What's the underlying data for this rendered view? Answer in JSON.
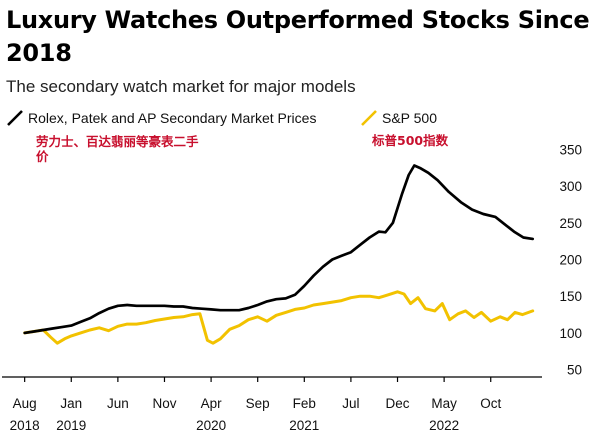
{
  "header": {
    "title": "Luxury Watches Outperformed Stocks Since 2018",
    "subtitle": "The secondary watch market for major models"
  },
  "chart_data": {
    "type": "line",
    "title": "Luxury Watches Outperformed Stocks Since 2018",
    "subtitle": "The secondary watch market for major models",
    "x_ticks": [
      {
        "month": "Aug",
        "year": "2018",
        "t": 0
      },
      {
        "month": "Jan",
        "year": "2019",
        "t": 5
      },
      {
        "month": "Jun",
        "year": "",
        "t": 10
      },
      {
        "month": "Nov",
        "year": "",
        "t": 15
      },
      {
        "month": "Apr",
        "year": "2020",
        "t": 20
      },
      {
        "month": "Sep",
        "year": "",
        "t": 25
      },
      {
        "month": "Feb",
        "year": "2021",
        "t": 30
      },
      {
        "month": "Jul",
        "year": "",
        "t": 35
      },
      {
        "month": "Dec",
        "year": "",
        "t": 40
      },
      {
        "month": "May",
        "year": "2022",
        "t": 45
      },
      {
        "month": "Oct",
        "year": "",
        "t": 50
      }
    ],
    "y_ticks": [
      50,
      100,
      150,
      200,
      250,
      300,
      350
    ],
    "ylim": [
      40,
      360
    ],
    "xlim": [
      -0.5,
      55.5
    ],
    "grid": false,
    "legend_position": "top-left",
    "colors": {
      "watch": "#000000",
      "sp500": "#f2c200"
    },
    "series": [
      {
        "name": "Rolex, Patek and AP Secondary Market Prices",
        "note_cn": "劳力士、百达翡丽等豪表二手价",
        "points": [
          [
            0,
            100
          ],
          [
            1,
            102
          ],
          [
            2,
            104
          ],
          [
            3,
            106
          ],
          [
            4,
            108
          ],
          [
            5,
            110
          ],
          [
            6,
            115
          ],
          [
            7,
            120
          ],
          [
            8,
            127
          ],
          [
            9,
            133
          ],
          [
            10,
            137
          ],
          [
            11,
            138
          ],
          [
            12,
            137
          ],
          [
            13,
            137
          ],
          [
            14,
            137
          ],
          [
            15,
            137
          ],
          [
            16,
            136
          ],
          [
            17,
            136
          ],
          [
            18,
            134
          ],
          [
            19,
            133
          ],
          [
            20,
            132
          ],
          [
            21,
            131
          ],
          [
            22,
            131
          ],
          [
            23,
            131
          ],
          [
            24,
            134
          ],
          [
            25,
            138
          ],
          [
            26,
            143
          ],
          [
            27,
            146
          ],
          [
            28,
            147
          ],
          [
            29,
            152
          ],
          [
            30,
            164
          ],
          [
            31,
            178
          ],
          [
            32,
            190
          ],
          [
            33,
            200
          ],
          [
            34,
            205
          ],
          [
            35,
            210
          ],
          [
            36,
            220
          ],
          [
            37,
            230
          ],
          [
            38,
            238
          ],
          [
            38.7,
            237
          ],
          [
            39.5,
            250
          ],
          [
            40.5,
            290
          ],
          [
            41.2,
            315
          ],
          [
            41.8,
            328
          ],
          [
            42.5,
            324
          ],
          [
            43.3,
            318
          ],
          [
            44.3,
            308
          ],
          [
            45.5,
            292
          ],
          [
            46.8,
            278
          ],
          [
            48,
            268
          ],
          [
            49.2,
            262
          ],
          [
            50.5,
            258
          ],
          [
            51.5,
            248
          ],
          [
            52.5,
            238
          ],
          [
            53.5,
            230
          ],
          [
            54.5,
            228
          ]
        ]
      },
      {
        "name": "S&P 500",
        "note_cn": "标普500指数",
        "points": [
          [
            0,
            100
          ],
          [
            1,
            102
          ],
          [
            2,
            104
          ],
          [
            2.8,
            94
          ],
          [
            3.5,
            86
          ],
          [
            4.3,
            92
          ],
          [
            5,
            96
          ],
          [
            6,
            100
          ],
          [
            7,
            104
          ],
          [
            8,
            107
          ],
          [
            9,
            103
          ],
          [
            10,
            109
          ],
          [
            11,
            112
          ],
          [
            12,
            112
          ],
          [
            13,
            114
          ],
          [
            14,
            117
          ],
          [
            15,
            119
          ],
          [
            16,
            121
          ],
          [
            17,
            122
          ],
          [
            18,
            125
          ],
          [
            18.8,
            126
          ],
          [
            19.6,
            90
          ],
          [
            20.2,
            86
          ],
          [
            21,
            92
          ],
          [
            22,
            105
          ],
          [
            23,
            110
          ],
          [
            24,
            118
          ],
          [
            25,
            122
          ],
          [
            26,
            116
          ],
          [
            27,
            124
          ],
          [
            28,
            128
          ],
          [
            29,
            132
          ],
          [
            30,
            134
          ],
          [
            31,
            138
          ],
          [
            32,
            140
          ],
          [
            33,
            142
          ],
          [
            34,
            144
          ],
          [
            35,
            148
          ],
          [
            36,
            150
          ],
          [
            37,
            150
          ],
          [
            38,
            148
          ],
          [
            39,
            152
          ],
          [
            40,
            156
          ],
          [
            40.7,
            153
          ],
          [
            41.4,
            140
          ],
          [
            42.2,
            148
          ],
          [
            43,
            133
          ],
          [
            44,
            130
          ],
          [
            44.8,
            140
          ],
          [
            45.6,
            118
          ],
          [
            46.5,
            126
          ],
          [
            47.3,
            130
          ],
          [
            48.2,
            121
          ],
          [
            49,
            128
          ],
          [
            50,
            116
          ],
          [
            51,
            122
          ],
          [
            51.8,
            118
          ],
          [
            52.6,
            128
          ],
          [
            53.4,
            125
          ],
          [
            54.5,
            130
          ]
        ]
      }
    ]
  }
}
